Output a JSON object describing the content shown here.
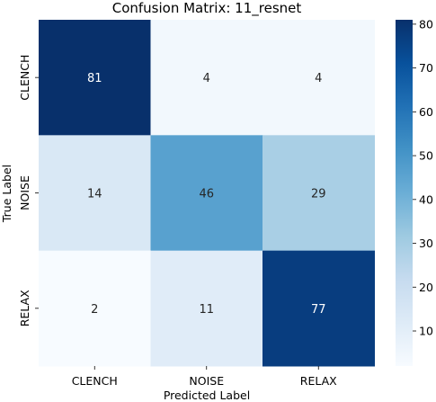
{
  "chart_data": {
    "type": "heatmap",
    "title": "Confusion Matrix: 11_resnet",
    "xlabel": "Predicted Label",
    "ylabel": "True Label",
    "x_categories": [
      "CLENCH",
      "NOISE",
      "RELAX"
    ],
    "y_categories": [
      "CLENCH",
      "NOISE",
      "RELAX"
    ],
    "values": [
      [
        81,
        4,
        4
      ],
      [
        14,
        46,
        29
      ],
      [
        2,
        11,
        77
      ]
    ],
    "colormap": "Blues",
    "colorbar": {
      "range": [
        2,
        81
      ],
      "ticks": [
        10,
        20,
        30,
        40,
        50,
        60,
        70,
        80
      ]
    },
    "grid": false,
    "legend": "colorbar-right"
  }
}
